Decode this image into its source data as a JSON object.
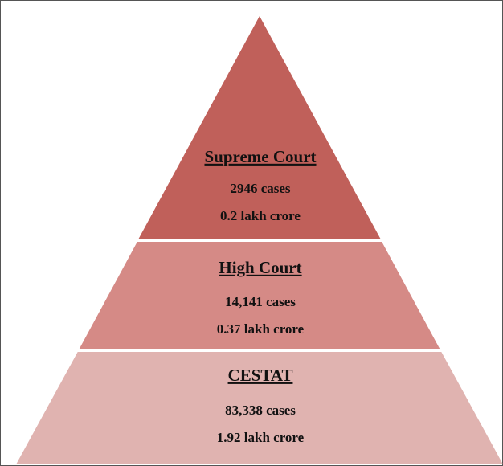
{
  "tiers": [
    {
      "name": "Supreme Court",
      "cases": "2946 cases",
      "amount": "0.2 lakh crore"
    },
    {
      "name": "High Court",
      "cases": "14,141 cases",
      "amount": "0.37 lakh crore"
    },
    {
      "name": "CESTAT",
      "cases": "83,338 cases",
      "amount": "1.92 lakh crore"
    }
  ]
}
